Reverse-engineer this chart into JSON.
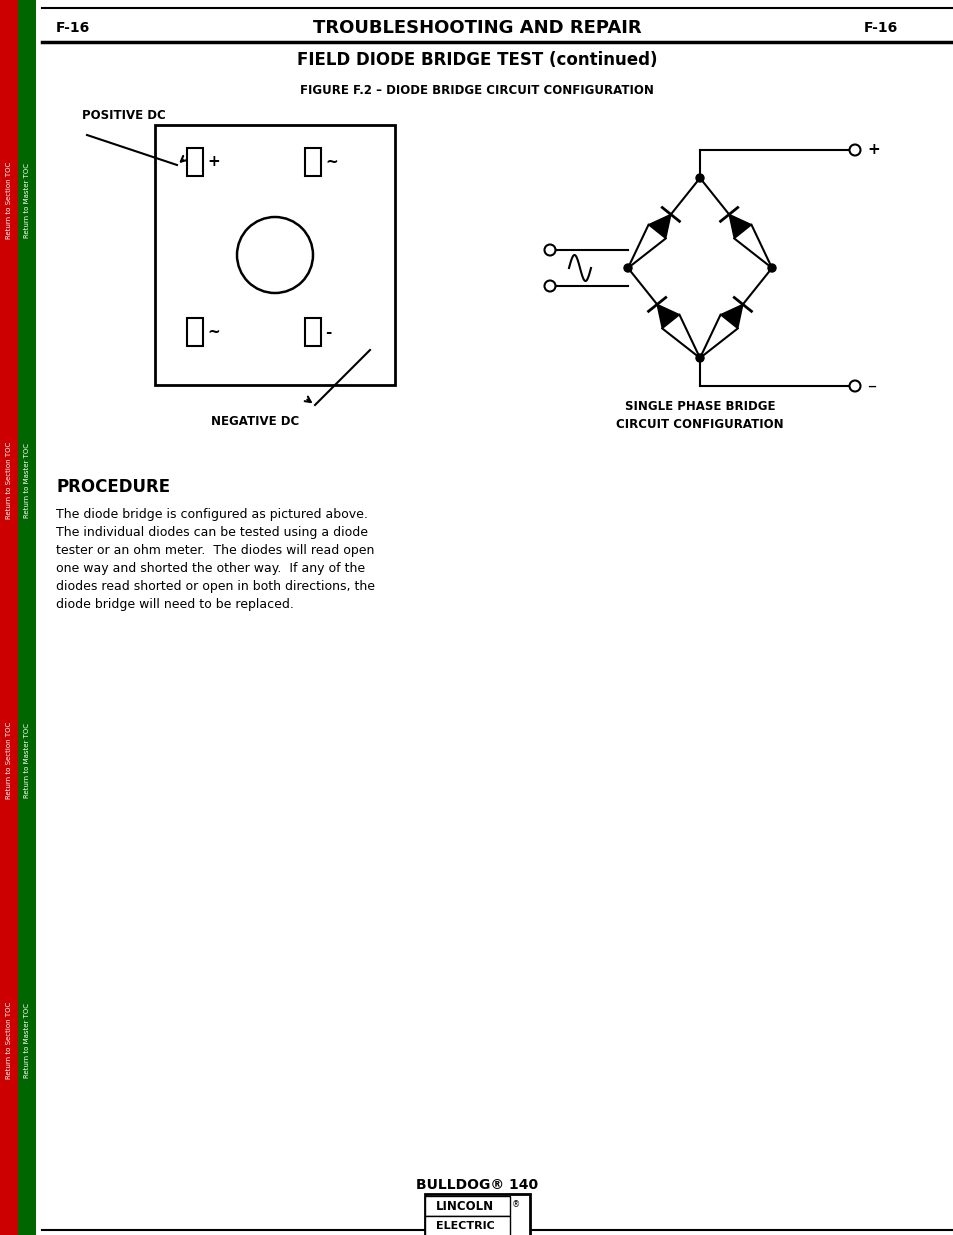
{
  "page_code": "F-16",
  "page_title": "TROUBLESHOOTING AND REPAIR",
  "subtitle": "FIELD DIODE BRIDGE TEST (continued)",
  "figure_title": "FIGURE F.2 – DIODE BRIDGE CIRCUIT CONFIGURATION",
  "positive_dc_label": "POSITIVE DC",
  "negative_dc_label": "NEGATIVE DC",
  "single_phase_label1": "SINGLE PHASE BRIDGE",
  "single_phase_label2": "CIRCUIT CONFIGURATION",
  "procedure_title": "PROCEDURE",
  "procedure_lines": [
    "The diode bridge is configured as pictured above.",
    "The individual diodes can be tested using a diode",
    "tester or an ohm meter.  The diodes will read open",
    "one way and shorted the other way.  If any of the",
    "diodes read shorted or open in both directions, the",
    "diode bridge will need to be replaced."
  ],
  "footer_text": "BULLDOG® 140",
  "sidebar_red_text": "Return to Section TOC",
  "sidebar_green_text": "Return to Master TOC",
  "bg_color": "#ffffff",
  "sidebar_red": "#cc0000",
  "sidebar_green": "#006600",
  "fig_w": 9.54,
  "fig_h": 12.35,
  "dpi": 100
}
